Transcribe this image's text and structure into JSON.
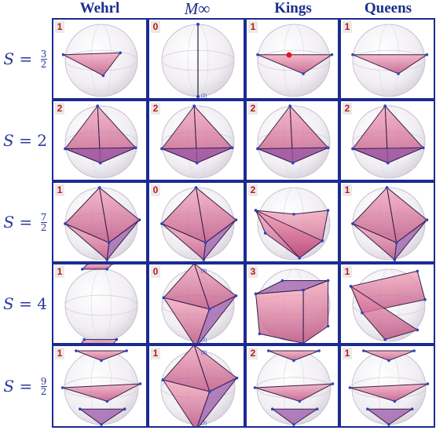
{
  "columns": [
    {
      "label": "Wehrl"
    },
    {
      "label": "M∞"
    },
    {
      "label": "Kings"
    },
    {
      "label": "Queens"
    }
  ],
  "rows": [
    {
      "prefix": "S = ",
      "value": "",
      "num": "3",
      "den": "2"
    },
    {
      "prefix": "S = ",
      "value": "2",
      "num": "",
      "den": ""
    },
    {
      "prefix": "S = ",
      "value": "",
      "num": "7",
      "den": "2"
    },
    {
      "prefix": "S = ",
      "value": "4",
      "num": "",
      "den": ""
    },
    {
      "prefix": "S = ",
      "value": "",
      "num": "9",
      "den": "2"
    }
  ],
  "badges": [
    [
      "1",
      "0",
      "1",
      "1"
    ],
    [
      "2",
      "2",
      "2",
      "2"
    ],
    [
      "1",
      "0",
      "2",
      "1"
    ],
    [
      "1",
      "0",
      "3",
      "1"
    ],
    [
      "1",
      "1",
      "2",
      "1"
    ]
  ],
  "multiplicity_label": "(2)",
  "colors": {
    "frame": "#1b2b8f",
    "heading": "#1a2e8a",
    "badge_text": "#c41616",
    "polytope_fill": "#e0708e",
    "polytope_dark": "#6f4aa0",
    "vertex": "#2b44c8",
    "special_point": "#e01818"
  }
}
